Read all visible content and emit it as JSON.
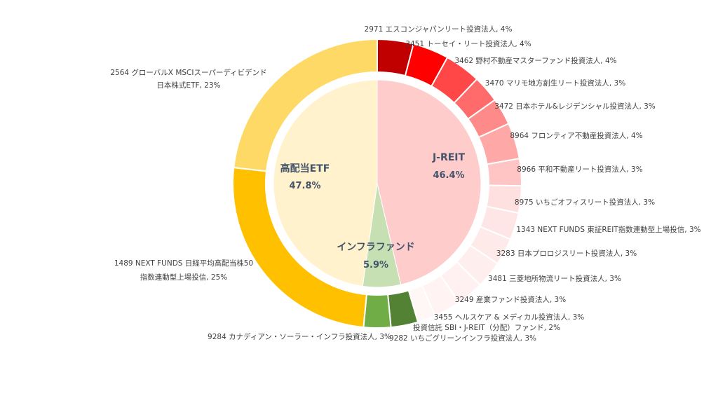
{
  "chart_data": {
    "type": "pie",
    "inner": [
      {
        "name": "J-REIT",
        "pct_label": "46.4%",
        "value": 46.4,
        "color": "#ffcccc"
      },
      {
        "name": "インフラファンド",
        "pct_label": "5.9%",
        "value": 5.9,
        "color": "#c6e0b4"
      },
      {
        "name": "高配当ETF",
        "pct_label": "47.8%",
        "value": 47.8,
        "color": "#fff2cc"
      }
    ],
    "outer": [
      {
        "lines": [
          "2971 エスコンジャパンリート投資法人, 4%"
        ],
        "value": 4,
        "color": "#c00000"
      },
      {
        "lines": [
          "3451 トーセイ・リート投資法人, 4%"
        ],
        "value": 4,
        "color": "#ff0000"
      },
      {
        "lines": [
          "3462 野村不動産マスターファンド投資法人, 4%"
        ],
        "value": 4,
        "color": "#ff4747"
      },
      {
        "lines": [
          "3470 マリモ地方創生リート投資法人, 3%"
        ],
        "value": 3,
        "color": "#ff6b6b"
      },
      {
        "lines": [
          "3472 日本ホテル&レジデンシャル投資法人, 3%"
        ],
        "value": 3,
        "color": "#ff8a8a"
      },
      {
        "lines": [
          "8964 フロンティア不動産投資法人, 4%"
        ],
        "value": 4,
        "color": "#ffa8a8"
      },
      {
        "lines": [
          "8966 平和不動産リート投資法人, 3%"
        ],
        "value": 3,
        "color": "#ffc4c4"
      },
      {
        "lines": [
          "8975 いちごオフィスリート投資法人, 3%"
        ],
        "value": 3,
        "color": "#ffe0e0"
      },
      {
        "lines": [
          "1343 NEXT FUNDS 東証REIT指数連動型上場投信, 3%"
        ],
        "value": 3,
        "color": "#ffe6e6"
      },
      {
        "lines": [
          "3283 日本プロロジスリート投資法人, 3%"
        ],
        "value": 3,
        "color": "#ffeaea"
      },
      {
        "lines": [
          "3481 三菱地所物流リート投資法人, 3%"
        ],
        "value": 3,
        "color": "#ffeeee"
      },
      {
        "lines": [
          "3249 産業ファンド投資法人, 3%"
        ],
        "value": 3,
        "color": "#fff1f1"
      },
      {
        "lines": [
          "3455 ヘルスケア & メディカル投資法人, 3%"
        ],
        "value": 3,
        "color": "#fff3f3"
      },
      {
        "lines": [
          "投資信託 SBI・J-REIT（分配）ファンド, 2%"
        ],
        "value": 2,
        "color": "#fff6f6"
      },
      {
        "lines": [
          "9282 いちごグリーンインフラ投資法人, 3%"
        ],
        "value": 3,
        "color": "#548235"
      },
      {
        "lines": [
          "9284 カナディアン・ソーラー・インフラ投資法人, 3%"
        ],
        "value": 3,
        "color": "#70ad47"
      },
      {
        "lines": [
          "1489 NEXT FUNDS 日経平均高配当株50",
          "指数連動型上場投信, 25%"
        ],
        "value": 25,
        "color": "#ffc000"
      },
      {
        "lines": [
          "2564 グローバルX MSCIスーパーディビデンド",
          "日本株式ETF, 23%"
        ],
        "value": 23,
        "color": "#ffd966"
      }
    ]
  }
}
